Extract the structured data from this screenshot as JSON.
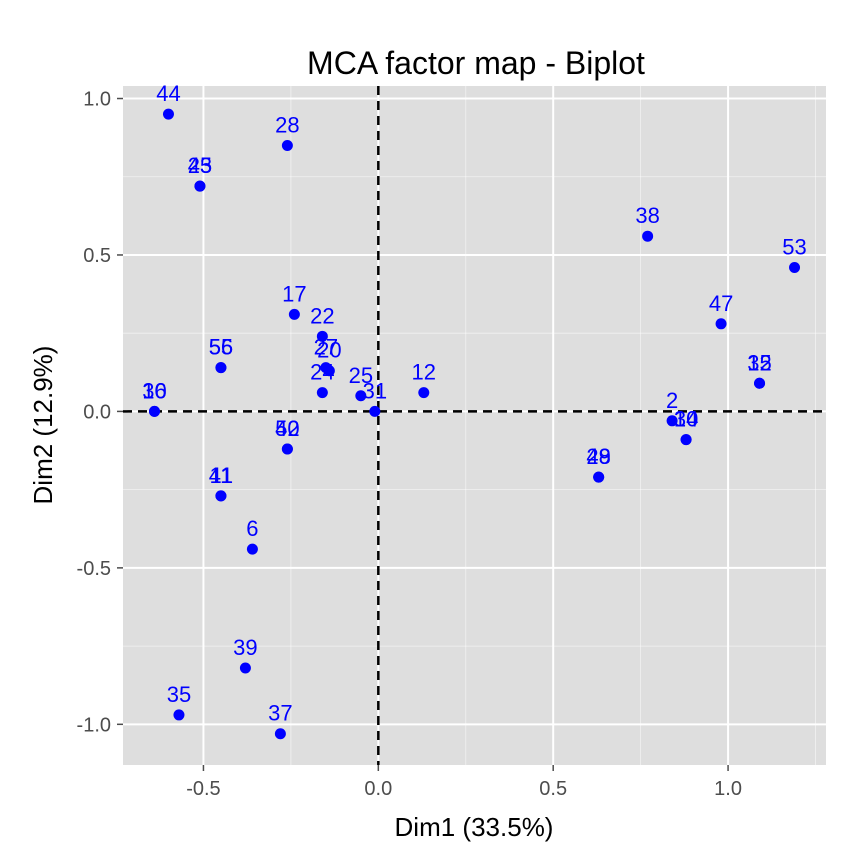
{
  "chart_data": {
    "type": "scatter",
    "title": "MCA factor map - Biplot",
    "xlabel": "Dim1 (33.5%)",
    "ylabel": "Dim2 (12.9%)",
    "xlim": [
      -0.73,
      1.28
    ],
    "ylim": [
      -1.13,
      1.04
    ],
    "x_ticks": [
      -0.5,
      0.0,
      0.5,
      1.0
    ],
    "y_ticks": [
      -1.0,
      -0.5,
      0.0,
      0.5,
      1.0
    ],
    "x_tick_labels": [
      "-0.5",
      "0.0",
      "0.5",
      "1.0"
    ],
    "y_tick_labels": [
      "-1.0",
      "-0.5",
      "0.0",
      "0.5",
      "1.0"
    ],
    "grid": true,
    "reference_lines": {
      "x": 0,
      "y": 0,
      "style": "dashed"
    },
    "colors": {
      "panel": "#dedede",
      "grid": "#ffffff",
      "point": "#0000ff",
      "label": "#0000ff",
      "ref_line": "#000000"
    },
    "points": [
      {
        "label": "44",
        "x": -0.6,
        "y": 0.95
      },
      {
        "label": "28",
        "x": -0.26,
        "y": 0.85
      },
      {
        "label": "45",
        "x": -0.51,
        "y": 0.72
      },
      {
        "label": "23",
        "x": -0.51,
        "y": 0.72
      },
      {
        "label": "17",
        "x": -0.24,
        "y": 0.31
      },
      {
        "label": "22",
        "x": -0.16,
        "y": 0.24
      },
      {
        "label": "27",
        "x": -0.15,
        "y": 0.14
      },
      {
        "label": "20",
        "x": -0.14,
        "y": 0.13
      },
      {
        "label": "24",
        "x": -0.16,
        "y": 0.06
      },
      {
        "label": "25",
        "x": -0.05,
        "y": 0.05
      },
      {
        "label": "31",
        "x": -0.01,
        "y": 0.0
      },
      {
        "label": "12",
        "x": 0.13,
        "y": 0.06
      },
      {
        "label": "56",
        "x": -0.45,
        "y": 0.14
      },
      {
        "label": "55",
        "x": -0.45,
        "y": 0.14
      },
      {
        "label": "16",
        "x": -0.64,
        "y": 0.0
      },
      {
        "label": "30",
        "x": -0.64,
        "y": 0.0
      },
      {
        "label": "40",
        "x": -0.26,
        "y": -0.12
      },
      {
        "label": "52",
        "x": -0.26,
        "y": -0.12
      },
      {
        "label": "41",
        "x": -0.45,
        "y": -0.27
      },
      {
        "label": "11",
        "x": -0.45,
        "y": -0.27
      },
      {
        "label": "6",
        "x": -0.36,
        "y": -0.44
      },
      {
        "label": "39",
        "x": -0.38,
        "y": -0.82
      },
      {
        "label": "35",
        "x": -0.57,
        "y": -0.97
      },
      {
        "label": "37",
        "x": -0.28,
        "y": -1.03
      },
      {
        "label": "38",
        "x": 0.77,
        "y": 0.56
      },
      {
        "label": "53",
        "x": 1.19,
        "y": 0.46
      },
      {
        "label": "47",
        "x": 0.98,
        "y": 0.28
      },
      {
        "label": "15",
        "x": 1.09,
        "y": 0.09
      },
      {
        "label": "32",
        "x": 1.09,
        "y": 0.09
      },
      {
        "label": "2",
        "x": 0.84,
        "y": -0.03
      },
      {
        "label": "34",
        "x": 0.88,
        "y": -0.09
      },
      {
        "label": "10",
        "x": 0.88,
        "y": -0.09
      },
      {
        "label": "29",
        "x": 0.63,
        "y": -0.21
      },
      {
        "label": "48",
        "x": 0.63,
        "y": -0.21
      }
    ]
  }
}
